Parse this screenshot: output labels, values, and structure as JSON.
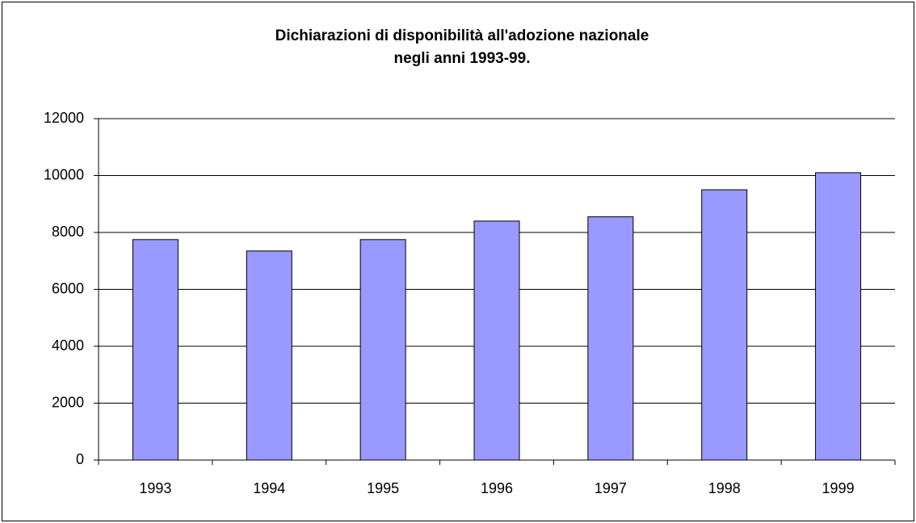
{
  "chart_data": {
    "type": "bar",
    "title": [
      "Dichiarazioni di disponibilità all'adozione nazionale",
      "negli anni 1993-99."
    ],
    "categories": [
      "1993",
      "1994",
      "1995",
      "1996",
      "1997",
      "1998",
      "1999"
    ],
    "values": [
      7750,
      7350,
      7750,
      8400,
      8550,
      9500,
      10100
    ],
    "color": "#9999ff",
    "ylim": [
      0,
      12000
    ],
    "yticks": [
      0,
      2000,
      4000,
      6000,
      8000,
      10000,
      12000
    ],
    "grid": true
  }
}
